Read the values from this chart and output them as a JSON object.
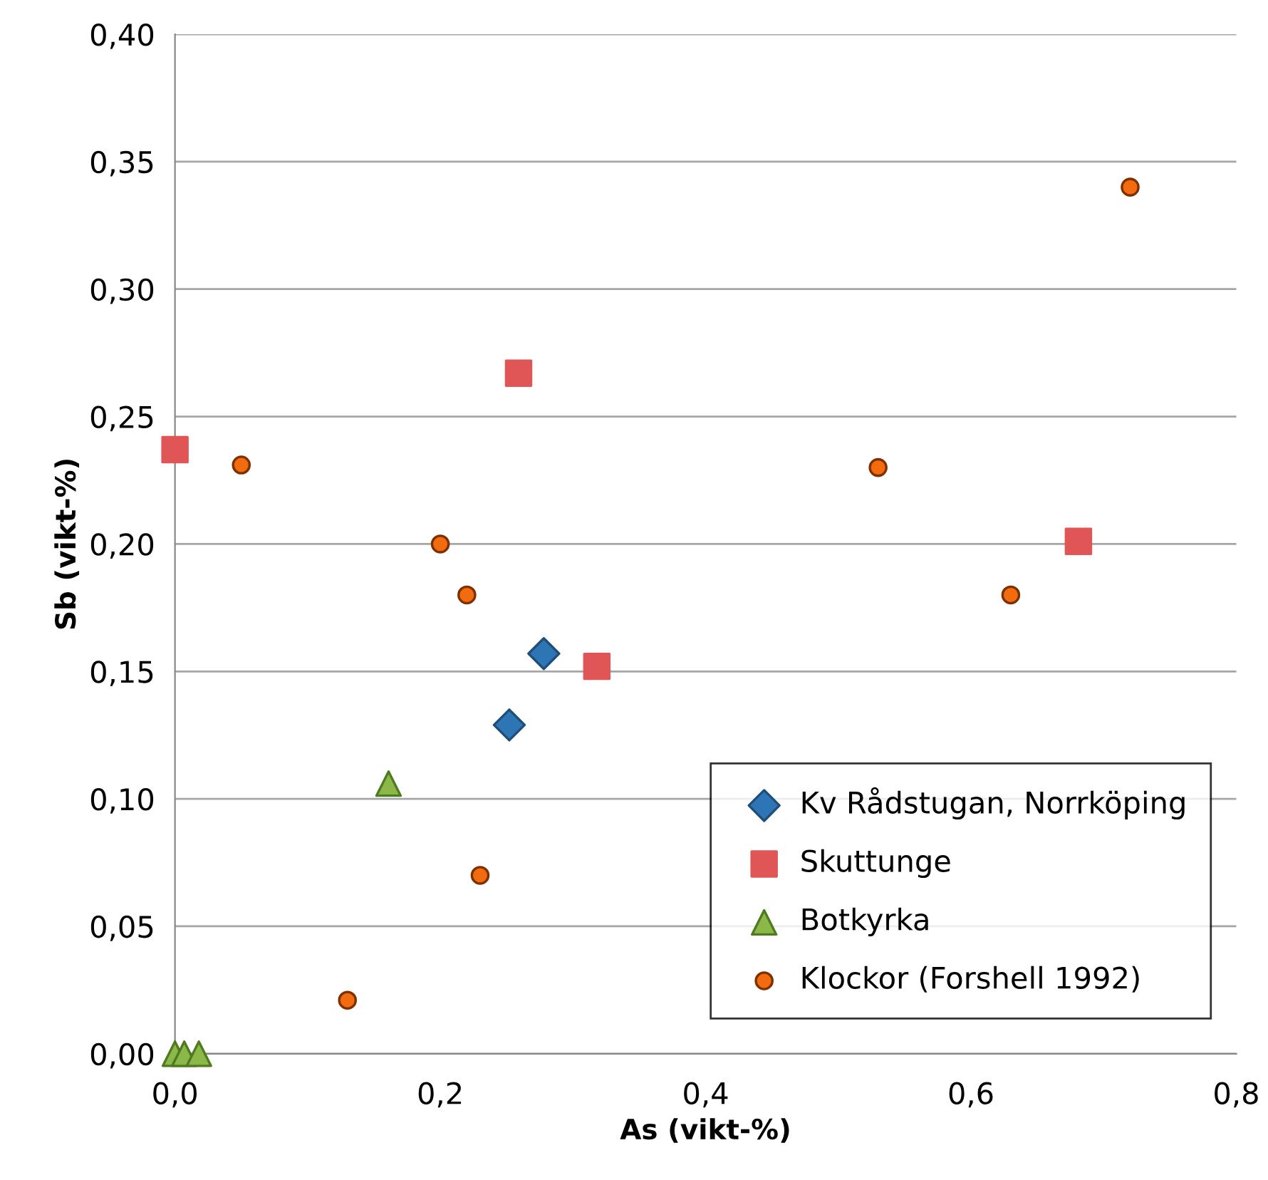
{
  "chart_data": {
    "type": "scatter",
    "xlabel": "As (vikt-%)",
    "ylabel": "Sb (vikt-%)",
    "xlim": [
      0,
      0.8
    ],
    "ylim": [
      0,
      0.4
    ],
    "xticks": [
      {
        "value": 0,
        "label": "0,0"
      },
      {
        "value": 0.2,
        "label": "0,2"
      },
      {
        "value": 0.4,
        "label": "0,4"
      },
      {
        "value": 0.6,
        "label": "0,6"
      },
      {
        "value": 0.8,
        "label": "0,8"
      }
    ],
    "yticks": [
      {
        "value": 0,
        "label": "0,00"
      },
      {
        "value": 0.05,
        "label": "0,05"
      },
      {
        "value": 0.1,
        "label": "0,10"
      },
      {
        "value": 0.15,
        "label": "0,15"
      },
      {
        "value": 0.2,
        "label": "0,20"
      },
      {
        "value": 0.25,
        "label": "0,25"
      },
      {
        "value": 0.3,
        "label": "0,30"
      },
      {
        "value": 0.35,
        "label": "0,35"
      },
      {
        "value": 0.4,
        "label": "0,40"
      }
    ],
    "grid": "y",
    "legend": "bottom right",
    "series": [
      {
        "name": "Kv Rådstugan, Norrköping",
        "color": "#2e75b6",
        "marker": "diamond",
        "x": [
          0.278,
          0.252
        ],
        "values": [
          0.157,
          0.129
        ]
      },
      {
        "name": "Skuttunge",
        "color": "#e05555",
        "marker": "square",
        "x": [
          0,
          0.259,
          0.318,
          0.681
        ],
        "values": [
          0.237,
          0.267,
          0.152,
          0.201
        ]
      },
      {
        "name": "Botkyrka",
        "color": "#8cb84a",
        "marker": "triangle",
        "x": [
          0.161,
          0,
          0.007,
          0.018
        ],
        "values": [
          0.106,
          0,
          0,
          0
        ]
      },
      {
        "name": "Klockor (Forshell 1992)",
        "color": "#f26b0f",
        "marker": "circle",
        "x": [
          0.05,
          0.2,
          0.22,
          0.23,
          0.13,
          0.53,
          0.63,
          0.72
        ],
        "values": [
          0.231,
          0.2,
          0.18,
          0.07,
          0.021,
          0.23,
          0.18,
          0.34
        ]
      }
    ]
  }
}
